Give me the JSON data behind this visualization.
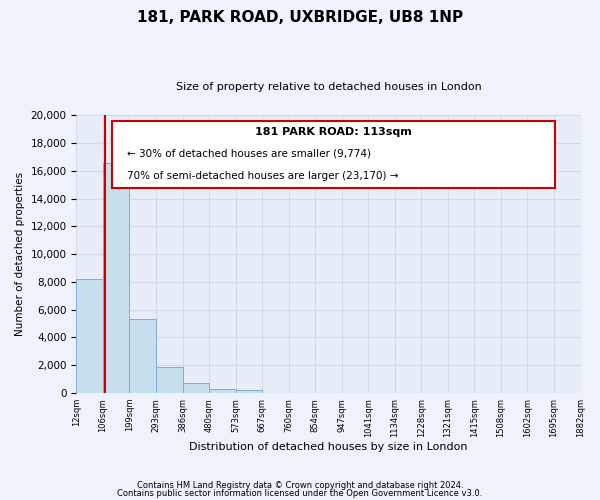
{
  "title": "181, PARK ROAD, UXBRIDGE, UB8 1NP",
  "subtitle": "Size of property relative to detached houses in London",
  "xlabel": "Distribution of detached houses by size in London",
  "ylabel": "Number of detached properties",
  "bar_values": [
    8200,
    16600,
    5300,
    1850,
    750,
    300,
    200,
    0,
    0,
    0,
    0,
    0,
    0,
    0,
    0,
    0,
    0,
    0,
    0
  ],
  "bar_color": "#c8dff0",
  "bar_edge_color": "#7bafd4",
  "x_labels": [
    "12sqm",
    "106sqm",
    "199sqm",
    "293sqm",
    "386sqm",
    "480sqm",
    "573sqm",
    "667sqm",
    "760sqm",
    "854sqm",
    "947sqm",
    "1041sqm",
    "1134sqm",
    "1228sqm",
    "1321sqm",
    "1415sqm",
    "1508sqm",
    "1602sqm",
    "1695sqm",
    "1882sqm"
  ],
  "ylim": [
    0,
    20000
  ],
  "yticks": [
    0,
    2000,
    4000,
    6000,
    8000,
    10000,
    12000,
    14000,
    16000,
    18000,
    20000
  ],
  "property_line_x": 1.07,
  "property_line_color": "#cc0000",
  "annotation_title": "181 PARK ROAD: 113sqm",
  "annotation_line1": "← 30% of detached houses are smaller (9,774)",
  "annotation_line2": "70% of semi-detached houses are larger (23,170) →",
  "annotation_box_color": "#ffffff",
  "annotation_box_edge": "#cc0000",
  "footer_line1": "Contains HM Land Registry data © Crown copyright and database right 2024.",
  "footer_line2": "Contains public sector information licensed under the Open Government Licence v3.0.",
  "background_color": "#eef2fa",
  "grid_color": "#d0daea",
  "ax_background": "#e8eef8"
}
